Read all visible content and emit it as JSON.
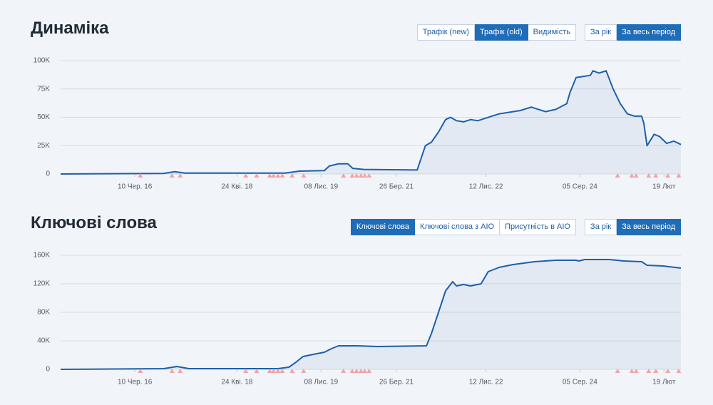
{
  "chart_data": [
    {
      "type": "line",
      "title": "Динаміка",
      "tabs": [
        "Трафік (new)",
        "Трафік (old)",
        "Видимість"
      ],
      "active_tab": 1,
      "period_tabs": [
        "За рік",
        "За весь період"
      ],
      "active_period": 1,
      "color": "#1f5fa8",
      "x": [
        2015.08,
        2016.97,
        2017.17,
        2017.36,
        2019.19,
        2019.45,
        2019.91,
        2020.0,
        2020.17,
        2020.34,
        2020.43,
        2020.63,
        2021.61,
        2021.76,
        2021.87,
        2022.0,
        2022.13,
        2022.22,
        2022.33,
        2022.46,
        2022.59,
        2022.72,
        2022.85,
        2023.11,
        2023.24,
        2023.5,
        2023.7,
        2023.83,
        2023.96,
        2024.15,
        2024.35,
        2024.41,
        2024.52,
        2024.65,
        2024.78,
        2024.83,
        2024.94,
        2025.07,
        2025.2,
        2025.33,
        2025.46,
        2025.59,
        2025.72,
        2025.76,
        2025.82,
        2025.95,
        2026.05,
        2026.18,
        2026.31,
        2026.44
      ],
      "values": [
        0,
        500,
        2000,
        800,
        800,
        2500,
        3000,
        7000,
        9000,
        9000,
        5000,
        4000,
        3500,
        25000,
        28000,
        37000,
        48000,
        50000,
        47000,
        46000,
        48000,
        47000,
        49000,
        53000,
        54000,
        56000,
        59000,
        57000,
        55000,
        57000,
        62000,
        72000,
        85000,
        86000,
        87000,
        91000,
        89000,
        91000,
        75000,
        62000,
        53000,
        51000,
        51000,
        45000,
        25000,
        35000,
        33000,
        27000,
        29000,
        26000
      ],
      "markers": [
        2016.54,
        2017.12,
        2017.27,
        2018.47,
        2018.67,
        2018.91,
        2018.98,
        2019.06,
        2019.14,
        2019.32,
        2019.53,
        2020.26,
        2020.42,
        2020.5,
        2020.58,
        2020.65,
        2020.73,
        2025.28,
        2025.54,
        2025.62,
        2025.85,
        2025.98,
        2026.2,
        2026.4
      ],
      "marker_color": "#f0a3a8",
      "xlim": [
        2015.08,
        2026.44
      ],
      "xticks": [
        {
          "value": 2016.44,
          "label": "10 Чер. 16"
        },
        {
          "value": 2018.31,
          "label": "24 Кві. 18"
        },
        {
          "value": 2019.85,
          "label": "08 Лис. 19"
        },
        {
          "value": 2021.23,
          "label": "26 Бер. 21"
        },
        {
          "value": 2022.87,
          "label": "12 Лис. 22"
        },
        {
          "value": 2024.59,
          "label": "05 Сер. 24"
        },
        {
          "value": 2026.13,
          "label": "19 Лют"
        }
      ],
      "ylim": [
        0,
        100000
      ],
      "yticks": [
        0,
        {
          "value": 25000,
          "label": "25K"
        },
        {
          "value": 50000,
          "label": "50K"
        },
        {
          "value": 75000,
          "label": "75K"
        },
        {
          "value": 100000,
          "label": "100K"
        }
      ],
      "grid": true
    },
    {
      "type": "line",
      "title": "Ключові слова",
      "tabs": [
        "Ключові слова",
        "Ключові слова з AIO",
        "Присутність в AIO"
      ],
      "active_tab": 0,
      "period_tabs": [
        "За рік",
        "За весь період"
      ],
      "active_period": 1,
      "color": "#1f5fa8",
      "x": [
        2015.08,
        2016.97,
        2017.21,
        2017.43,
        2019.06,
        2019.26,
        2019.39,
        2019.52,
        2019.71,
        2019.91,
        2020.04,
        2020.17,
        2020.5,
        2020.89,
        2021.78,
        2021.87,
        2022.0,
        2022.13,
        2022.26,
        2022.33,
        2022.46,
        2022.59,
        2022.78,
        2022.91,
        2023.11,
        2023.37,
        2023.76,
        2024.15,
        2024.52,
        2024.57,
        2024.68,
        2025.13,
        2025.39,
        2025.72,
        2025.82,
        2026.11,
        2026.44
      ],
      "values": [
        0,
        1000,
        4000,
        1000,
        1000,
        3000,
        10000,
        18000,
        21000,
        24000,
        29000,
        33000,
        33000,
        32000,
        33000,
        50000,
        80000,
        110000,
        123000,
        117000,
        119000,
        117000,
        120000,
        137000,
        143000,
        147000,
        151000,
        153000,
        153000,
        152000,
        154000,
        154000,
        152000,
        151000,
        146000,
        145000,
        142000
      ],
      "markers": [
        2016.54,
        2017.12,
        2017.27,
        2018.47,
        2018.67,
        2018.91,
        2018.98,
        2019.06,
        2019.14,
        2019.32,
        2019.53,
        2020.26,
        2020.42,
        2020.5,
        2020.58,
        2020.65,
        2020.73,
        2025.28,
        2025.54,
        2025.62,
        2025.85,
        2025.98,
        2026.2,
        2026.4
      ],
      "marker_color": "#f0a3a8",
      "xlim": [
        2015.08,
        2026.44
      ],
      "xticks": [
        {
          "value": 2016.44,
          "label": "10 Чер. 16"
        },
        {
          "value": 2018.31,
          "label": "24 Кві. 18"
        },
        {
          "value": 2019.85,
          "label": "08 Лис. 19"
        },
        {
          "value": 2021.23,
          "label": "26 Бер. 21"
        },
        {
          "value": 2022.87,
          "label": "12 Лис. 22"
        },
        {
          "value": 2024.59,
          "label": "05 Сер. 24"
        },
        {
          "value": 2026.13,
          "label": "19 Лют"
        }
      ],
      "ylim": [
        0,
        160000
      ],
      "yticks": [
        0,
        {
          "value": 40000,
          "label": "40K"
        },
        {
          "value": 80000,
          "label": "80K"
        },
        {
          "value": 120000,
          "label": "120K"
        },
        {
          "value": 160000,
          "label": "160K"
        }
      ],
      "grid": true
    }
  ]
}
